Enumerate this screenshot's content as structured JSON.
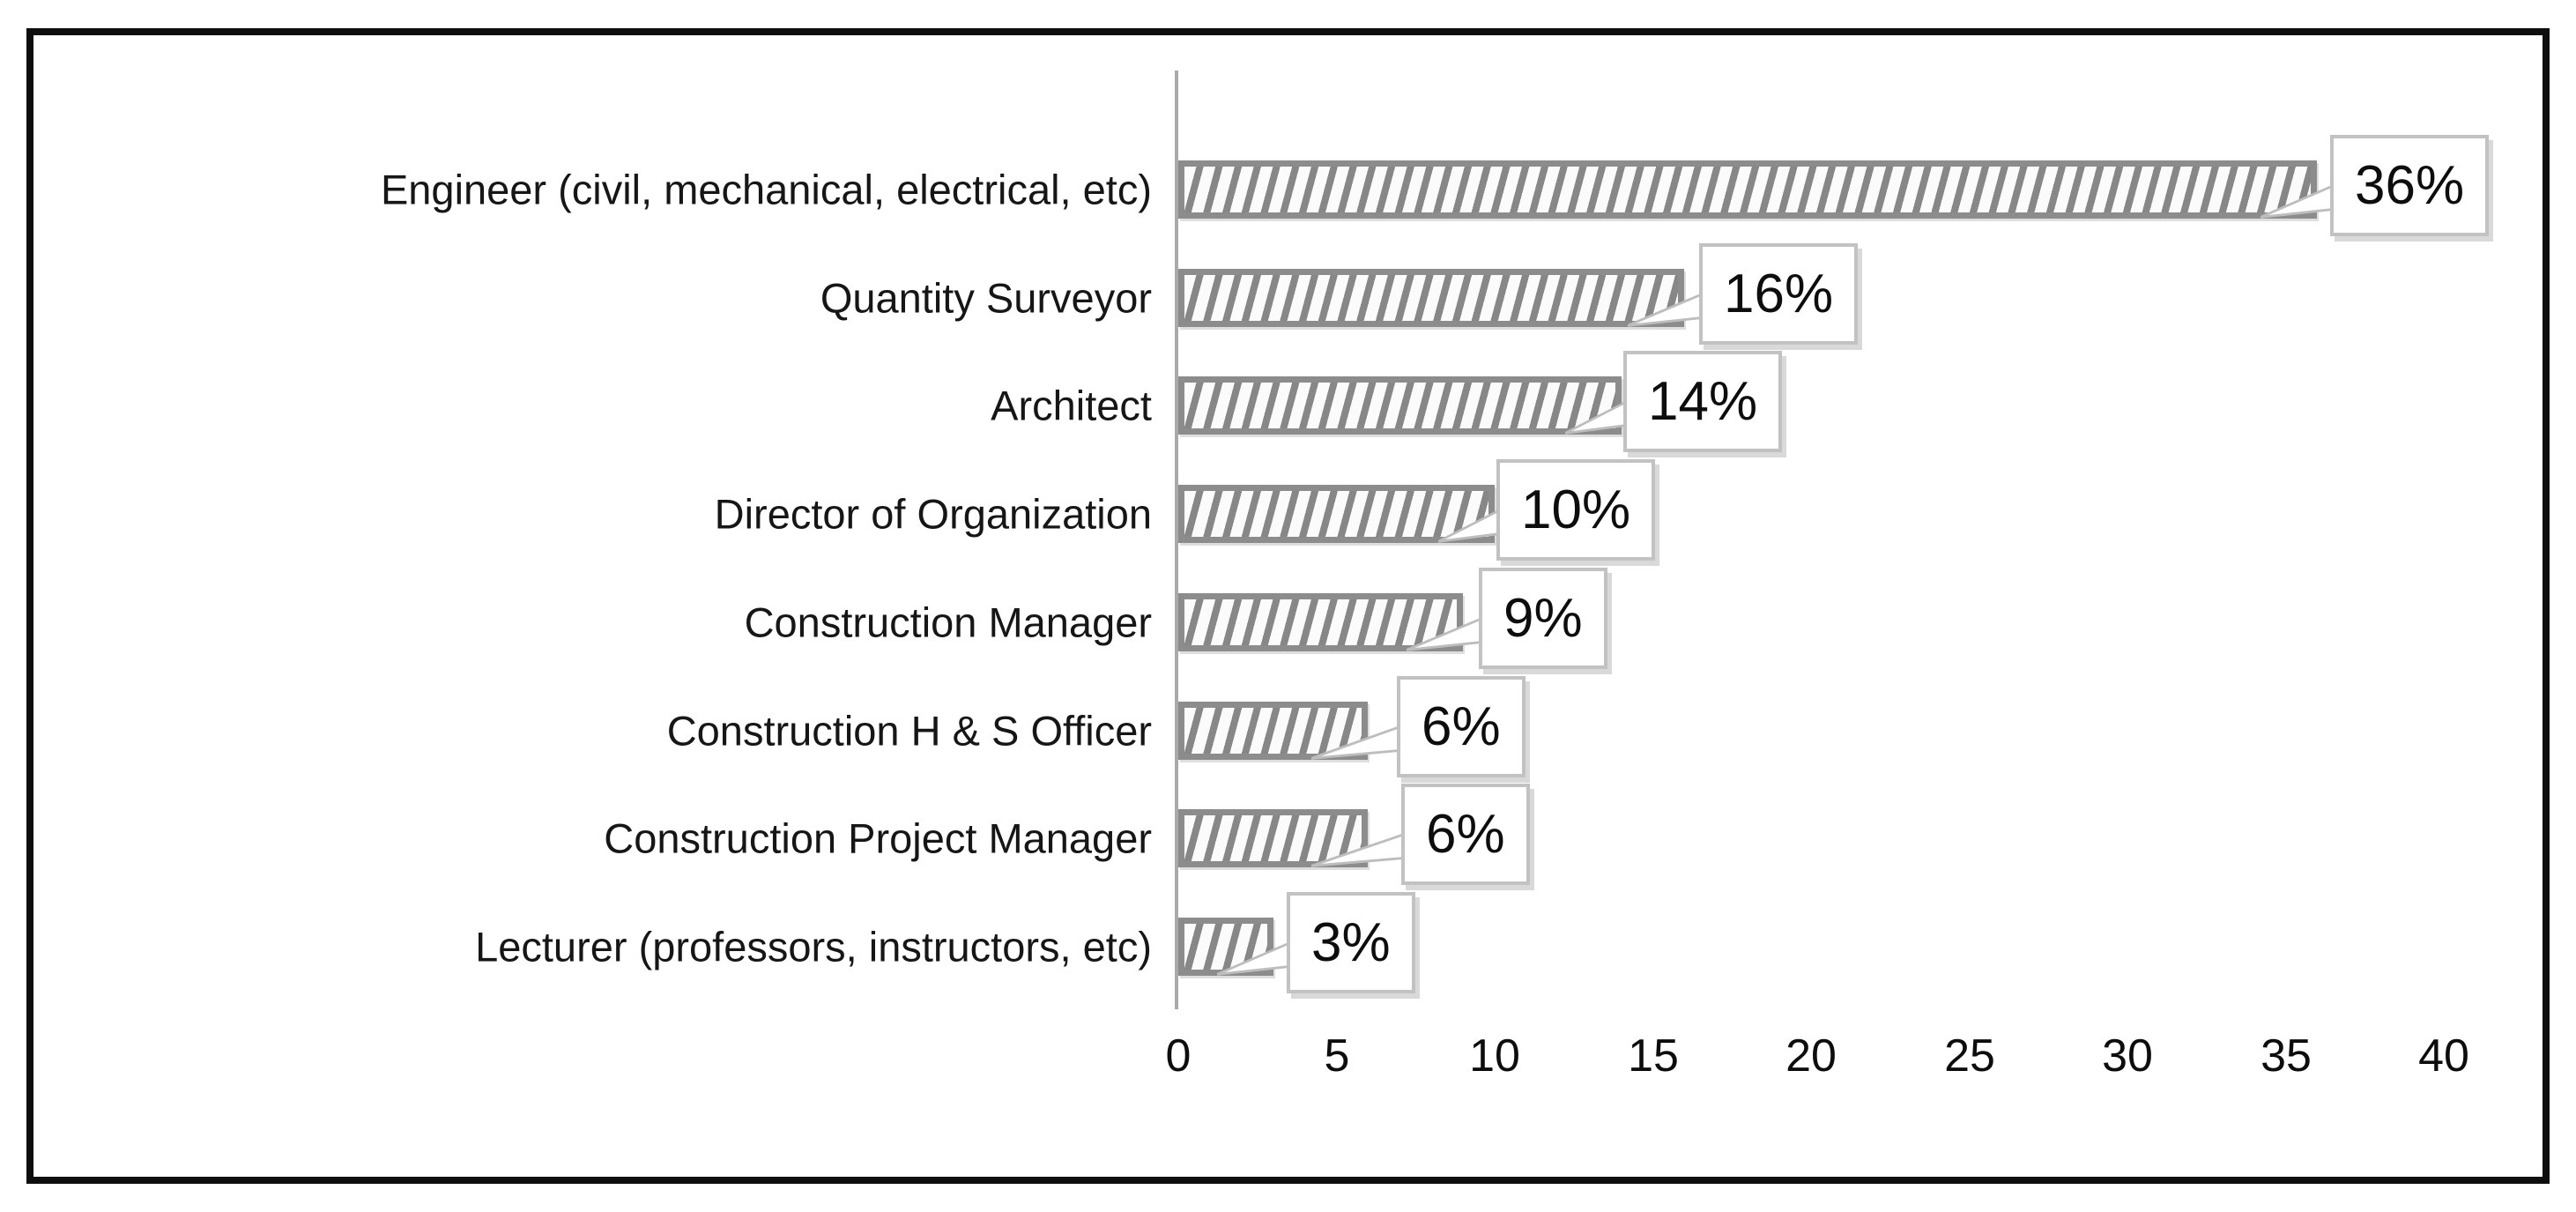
{
  "chart_data": {
    "type": "bar",
    "orientation": "horizontal",
    "title": "",
    "xlabel": "",
    "ylabel": "",
    "categories": [
      "Engineer (civil, mechanical, electrical, etc)",
      "Quantity Surveyor",
      "Architect",
      "Director of Organization",
      "Construction Manager",
      "Construction H & S Officer",
      "Construction Project Manager",
      "Lecturer (professors, instructors,  etc)"
    ],
    "values": [
      36,
      16,
      14,
      10,
      9,
      6,
      6,
      3
    ],
    "data_labels": [
      "36%",
      "16%",
      "14%",
      "10%",
      "9%",
      "6%",
      "6%",
      "3%"
    ],
    "x_ticks": [
      "0",
      "5",
      "10",
      "15",
      "20",
      "25",
      "30",
      "35",
      "40"
    ],
    "x_tick_values": [
      0,
      5,
      10,
      15,
      20,
      25,
      30,
      35,
      40
    ],
    "xlim": [
      0,
      40
    ],
    "grid": false,
    "legend": "none",
    "bar_pattern": "diagonal-hatch",
    "colors": {
      "bar_stripe": "#878787",
      "bar_background": "#fbfbfb",
      "bar_border": "#8c8c8c",
      "axis_line": "#a9a9a9",
      "callout_border": "#c2c2c2",
      "callout_fill": "#ffffff",
      "text": "#0d0d0d",
      "figure_border": "#0e0e0e",
      "background": "#ffffff"
    }
  }
}
